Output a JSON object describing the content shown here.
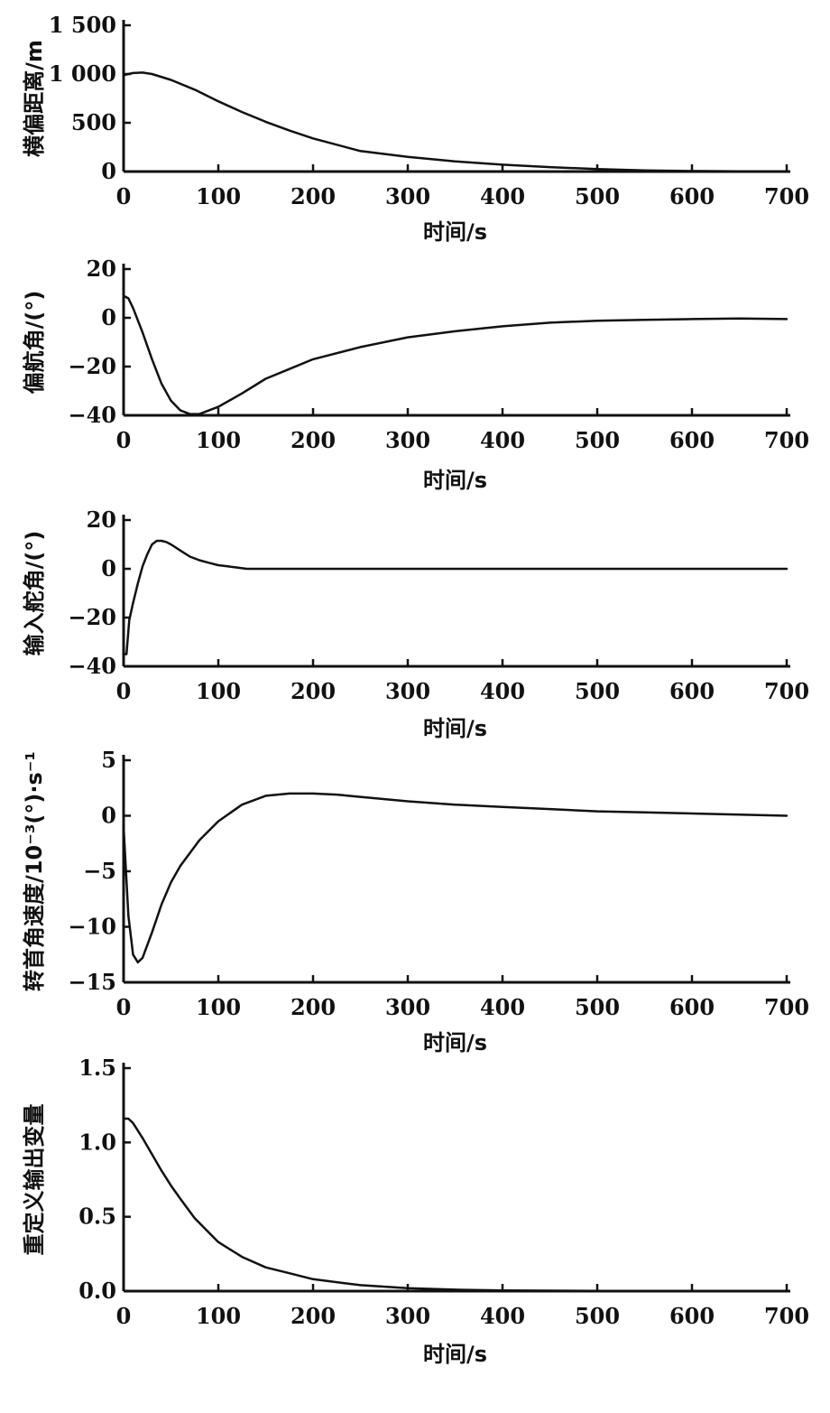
{
  "chart_data": [
    {
      "type": "line",
      "title": "",
      "xlabel": "时间/s",
      "ylabel": "横偏距离/m",
      "xlim": [
        0,
        700
      ],
      "ylim": [
        0,
        1500
      ],
      "x_ticks": [
        0,
        100,
        200,
        300,
        400,
        500,
        600,
        700
      ],
      "x_tick_labels": [
        "0",
        "100",
        "200",
        "300",
        "400",
        "500",
        "600",
        "700"
      ],
      "y_ticks": [
        0,
        500,
        1000,
        1500
      ],
      "y_tick_labels": [
        "0",
        "500",
        "1 000",
        "1 500"
      ],
      "grid": false,
      "series": [
        {
          "x": [
            0,
            10,
            20,
            30,
            50,
            75,
            100,
            125,
            150,
            175,
            200,
            250,
            300,
            350,
            400,
            450,
            500,
            550,
            600,
            650,
            700
          ],
          "values": [
            990,
            1010,
            1015,
            1000,
            940,
            840,
            720,
            610,
            510,
            420,
            340,
            210,
            150,
            105,
            70,
            45,
            25,
            12,
            6,
            3,
            2
          ]
        }
      ]
    },
    {
      "type": "line",
      "title": "",
      "xlabel": "时间/s",
      "ylabel": "偏航角/(°)",
      "xlim": [
        0,
        700
      ],
      "ylim": [
        -40,
        20
      ],
      "x_ticks": [
        0,
        100,
        200,
        300,
        400,
        500,
        600,
        700
      ],
      "x_tick_labels": [
        "0",
        "100",
        "200",
        "300",
        "400",
        "500",
        "600",
        "700"
      ],
      "y_ticks": [
        -40,
        -20,
        0,
        20
      ],
      "y_tick_labels": [
        "−40",
        "−20",
        "0",
        "20"
      ],
      "grid": false,
      "series": [
        {
          "x": [
            0,
            5,
            10,
            20,
            30,
            40,
            50,
            60,
            70,
            80,
            90,
            100,
            125,
            150,
            175,
            200,
            250,
            300,
            350,
            400,
            450,
            500,
            550,
            600,
            650,
            700
          ],
          "values": [
            9,
            8,
            4,
            -6,
            -17,
            -27,
            -34,
            -38,
            -39.5,
            -39.5,
            -38,
            -36.5,
            -31,
            -25,
            -21,
            -17,
            -12,
            -8,
            -5.5,
            -3.5,
            -2,
            -1.2,
            -0.8,
            -0.5,
            -0.3,
            -0.5
          ]
        }
      ]
    },
    {
      "type": "line",
      "title": "",
      "xlabel": "时间/s",
      "ylabel": "输入舵角/(°)",
      "xlim": [
        0,
        700
      ],
      "ylim": [
        -40,
        20
      ],
      "x_ticks": [
        0,
        100,
        200,
        300,
        400,
        500,
        600,
        700
      ],
      "x_tick_labels": [
        "0",
        "100",
        "200",
        "300",
        "400",
        "500",
        "600",
        "700"
      ],
      "y_ticks": [
        -40,
        -20,
        0,
        20
      ],
      "y_tick_labels": [
        "−40",
        "−20",
        "0",
        "20"
      ],
      "grid": false,
      "series": [
        {
          "x": [
            0,
            3,
            6,
            10,
            15,
            20,
            25,
            30,
            35,
            40,
            45,
            50,
            60,
            70,
            80,
            90,
            100,
            110,
            120,
            130,
            140,
            160,
            200,
            300,
            400,
            500,
            600,
            700
          ],
          "values": [
            -35,
            -35,
            -21,
            -14,
            -6,
            1,
            6,
            10,
            11.5,
            11.5,
            11,
            10,
            7.5,
            5,
            3.5,
            2.5,
            1.5,
            1,
            0.5,
            0,
            0,
            0,
            0,
            0,
            0,
            0,
            0,
            0
          ]
        }
      ]
    },
    {
      "type": "line",
      "title": "",
      "xlabel": "时间/s",
      "ylabel": "转首角速度/10⁻³(°)·s⁻¹",
      "xlim": [
        0,
        700
      ],
      "ylim": [
        -15,
        5
      ],
      "x_ticks": [
        0,
        100,
        200,
        300,
        400,
        500,
        600,
        700
      ],
      "x_tick_labels": [
        "0",
        "100",
        "200",
        "300",
        "400",
        "500",
        "600",
        "700"
      ],
      "y_ticks": [
        -15,
        -10,
        -5,
        0,
        5
      ],
      "y_tick_labels": [
        "−15",
        "−10",
        "−5",
        "0",
        "5"
      ],
      "grid": false,
      "series": [
        {
          "x": [
            0,
            5,
            10,
            15,
            20,
            30,
            40,
            50,
            60,
            80,
            100,
            125,
            150,
            175,
            200,
            225,
            250,
            300,
            350,
            400,
            450,
            500,
            550,
            600,
            650,
            700
          ],
          "values": [
            -1,
            -9,
            -12.5,
            -13.2,
            -12.8,
            -10.5,
            -8,
            -6,
            -4.5,
            -2.2,
            -0.5,
            1,
            1.8,
            2,
            2,
            1.9,
            1.7,
            1.3,
            1,
            0.8,
            0.6,
            0.4,
            0.3,
            0.2,
            0.1,
            0
          ]
        }
      ]
    },
    {
      "type": "line",
      "title": "",
      "xlabel": "时间/s",
      "ylabel": "重定义输出变量",
      "xlim": [
        0,
        700
      ],
      "ylim": [
        0,
        1.5
      ],
      "x_ticks": [
        0,
        100,
        200,
        300,
        400,
        500,
        600,
        700
      ],
      "x_tick_labels": [
        "0",
        "100",
        "200",
        "300",
        "400",
        "500",
        "600",
        "700"
      ],
      "y_ticks": [
        0,
        0.5,
        1.0,
        1.5
      ],
      "y_tick_labels": [
        "0.0",
        "0.5",
        "1.0",
        "1.5"
      ],
      "grid": false,
      "series": [
        {
          "x": [
            0,
            5,
            10,
            20,
            30,
            40,
            50,
            60,
            75,
            100,
            125,
            150,
            175,
            200,
            250,
            300,
            350,
            400,
            500,
            600,
            700
          ],
          "values": [
            1.16,
            1.16,
            1.13,
            1.03,
            0.92,
            0.81,
            0.71,
            0.62,
            0.49,
            0.33,
            0.23,
            0.16,
            0.12,
            0.08,
            0.04,
            0.02,
            0.01,
            0.005,
            0.002,
            0.001,
            0
          ]
        }
      ]
    }
  ]
}
